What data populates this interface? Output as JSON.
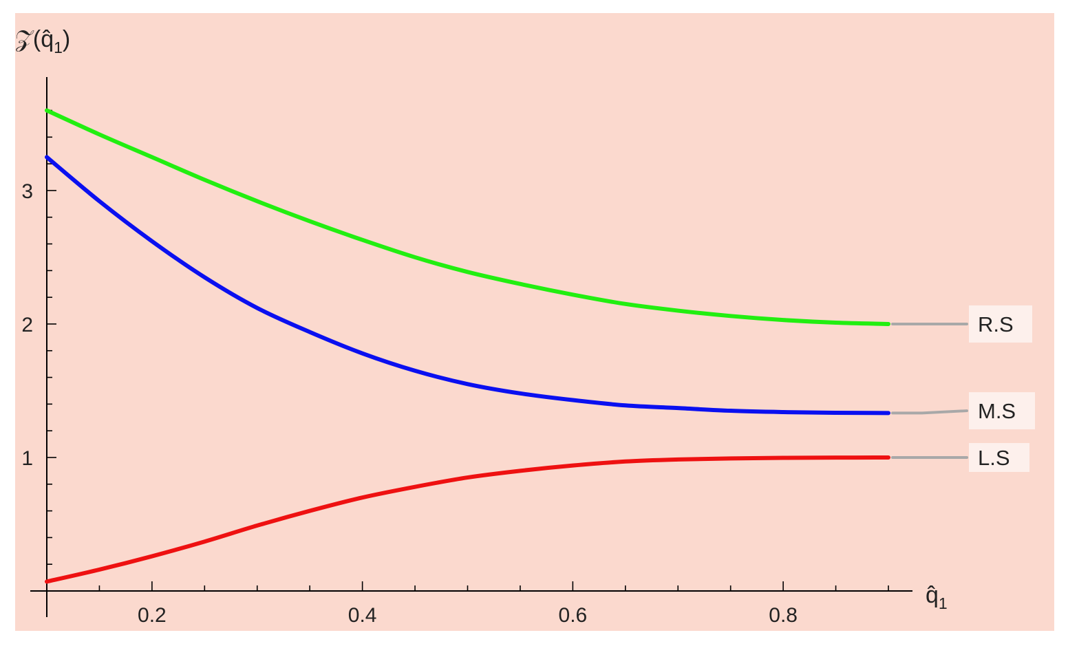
{
  "colors": {
    "background": "#FBD9CE",
    "axis": "#000000",
    "leader": "#A8A8A8",
    "legend_box": "#FDF0EC"
  },
  "chart_data": {
    "type": "line",
    "title": "",
    "xlabel": "q̂",
    "xlabel_sub": "1",
    "ylabel": "𝒵(q̂",
    "ylabel_sub": "1",
    "ylabel_close": ")",
    "xlim": [
      0.1,
      0.9
    ],
    "ylim": [
      0,
      3.85
    ],
    "x_ticks": [
      0.2,
      0.4,
      0.6,
      0.8
    ],
    "x_tick_labels": [
      "0.2",
      "0.4",
      "0.6",
      "0.8"
    ],
    "y_ticks": [
      1,
      2,
      3
    ],
    "y_tick_labels": [
      "1",
      "2",
      "3"
    ],
    "legend_placement": "right, labels attached to line ends",
    "series": [
      {
        "name": "R.S",
        "color": "#22EE11",
        "x": [
          0.1,
          0.15,
          0.2,
          0.25,
          0.3,
          0.35,
          0.4,
          0.45,
          0.5,
          0.55,
          0.6,
          0.65,
          0.7,
          0.75,
          0.8,
          0.85,
          0.9
        ],
        "y": [
          3.6,
          3.42,
          3.25,
          3.08,
          2.92,
          2.77,
          2.63,
          2.5,
          2.39,
          2.3,
          2.22,
          2.15,
          2.1,
          2.06,
          2.03,
          2.01,
          2.0
        ]
      },
      {
        "name": "M.S",
        "color": "#0A10F0",
        "x": [
          0.1,
          0.15,
          0.2,
          0.25,
          0.3,
          0.35,
          0.4,
          0.45,
          0.5,
          0.55,
          0.6,
          0.65,
          0.7,
          0.75,
          0.8,
          0.85,
          0.9
        ],
        "y": [
          3.25,
          2.92,
          2.62,
          2.35,
          2.12,
          1.94,
          1.78,
          1.65,
          1.55,
          1.48,
          1.43,
          1.39,
          1.37,
          1.35,
          1.34,
          1.335,
          1.333
        ]
      },
      {
        "name": "L.S",
        "color": "#EE1111",
        "x": [
          0.1,
          0.15,
          0.2,
          0.25,
          0.3,
          0.35,
          0.4,
          0.45,
          0.5,
          0.55,
          0.6,
          0.65,
          0.7,
          0.75,
          0.8,
          0.85,
          0.9
        ],
        "y": [
          0.07,
          0.16,
          0.26,
          0.37,
          0.49,
          0.6,
          0.7,
          0.78,
          0.85,
          0.9,
          0.94,
          0.97,
          0.985,
          0.993,
          0.997,
          0.999,
          1.0
        ]
      }
    ],
    "legend_label_y": [
      2.0,
      1.35,
      1.0
    ]
  }
}
